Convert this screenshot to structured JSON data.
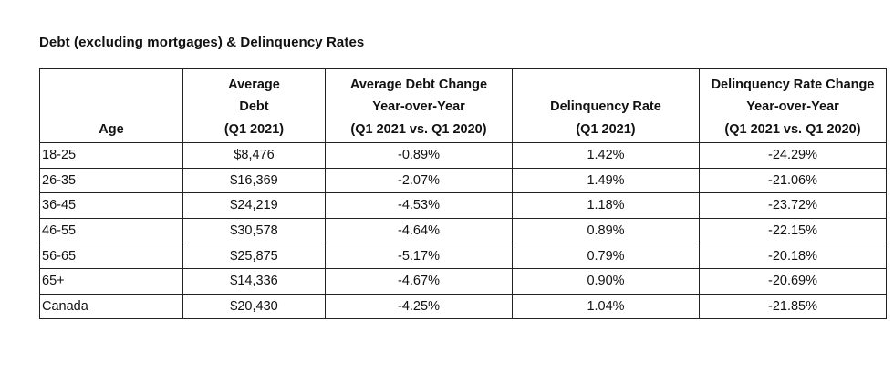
{
  "title": "Debt (excluding mortgages) & Delinquency Rates",
  "table": {
    "headers": [
      [
        "Age"
      ],
      [
        "Average",
        "Debt",
        "(Q1 2021)"
      ],
      [
        "Average Debt Change",
        "Year-over-Year",
        "(Q1 2021 vs. Q1 2020)"
      ],
      [
        "Delinquency Rate",
        "(Q1 2021)"
      ],
      [
        "Delinquency Rate Change",
        "Year-over-Year",
        "(Q1 2021 vs. Q1 2020)"
      ]
    ],
    "rows": [
      [
        "18-25",
        "$8,476",
        "-0.89%",
        "1.42%",
        "-24.29%"
      ],
      [
        "26-35",
        "$16,369",
        "-2.07%",
        "1.49%",
        "-21.06%"
      ],
      [
        "36-45",
        "$24,219",
        "-4.53%",
        "1.18%",
        "-23.72%"
      ],
      [
        "46-55",
        "$30,578",
        "-4.64%",
        "0.89%",
        "-22.15%"
      ],
      [
        "56-65",
        "$25,875",
        "-5.17%",
        "0.79%",
        "-20.18%"
      ],
      [
        "65+",
        "$14,336",
        "-4.67%",
        "0.90%",
        "-20.69%"
      ],
      [
        "Canada",
        "$20,430",
        "-4.25%",
        "1.04%",
        "-21.85%"
      ]
    ]
  }
}
